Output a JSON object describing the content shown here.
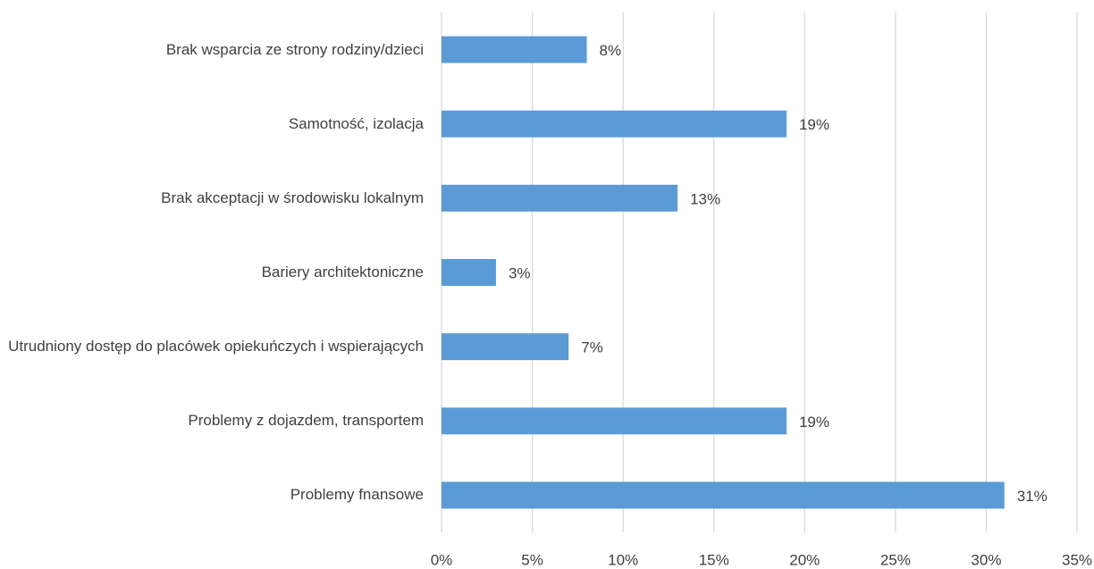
{
  "chart_data": {
    "type": "bar",
    "orientation": "horizontal",
    "categories": [
      "Brak wsparcia ze strony rodziny/dzieci",
      "Samotność, izolacja",
      "Brak akceptacji w środowisku lokalnym",
      "Bariery architektoniczne",
      "Utrudniony dostęp do placówek opiekuńczych i wspierających",
      "Problemy z dojazdem, transportem",
      "Problemy fnansowe"
    ],
    "values": [
      8,
      19,
      13,
      3,
      7,
      19,
      31
    ],
    "value_labels": [
      "8%",
      "19%",
      "13%",
      "3%",
      "7%",
      "19%",
      "31%"
    ],
    "color": "#5b9bd5",
    "xlim": [
      0,
      35
    ],
    "xticks": [
      {
        "value": 0,
        "label": "0%"
      },
      {
        "value": 5,
        "label": "5%"
      },
      {
        "value": 10,
        "label": "10%"
      },
      {
        "value": 15,
        "label": "15%"
      },
      {
        "value": 20,
        "label": "20%"
      },
      {
        "value": 25,
        "label": "25%"
      },
      {
        "value": 30,
        "label": "30%"
      },
      {
        "value": 35,
        "label": "35%"
      }
    ],
    "grid": true
  }
}
